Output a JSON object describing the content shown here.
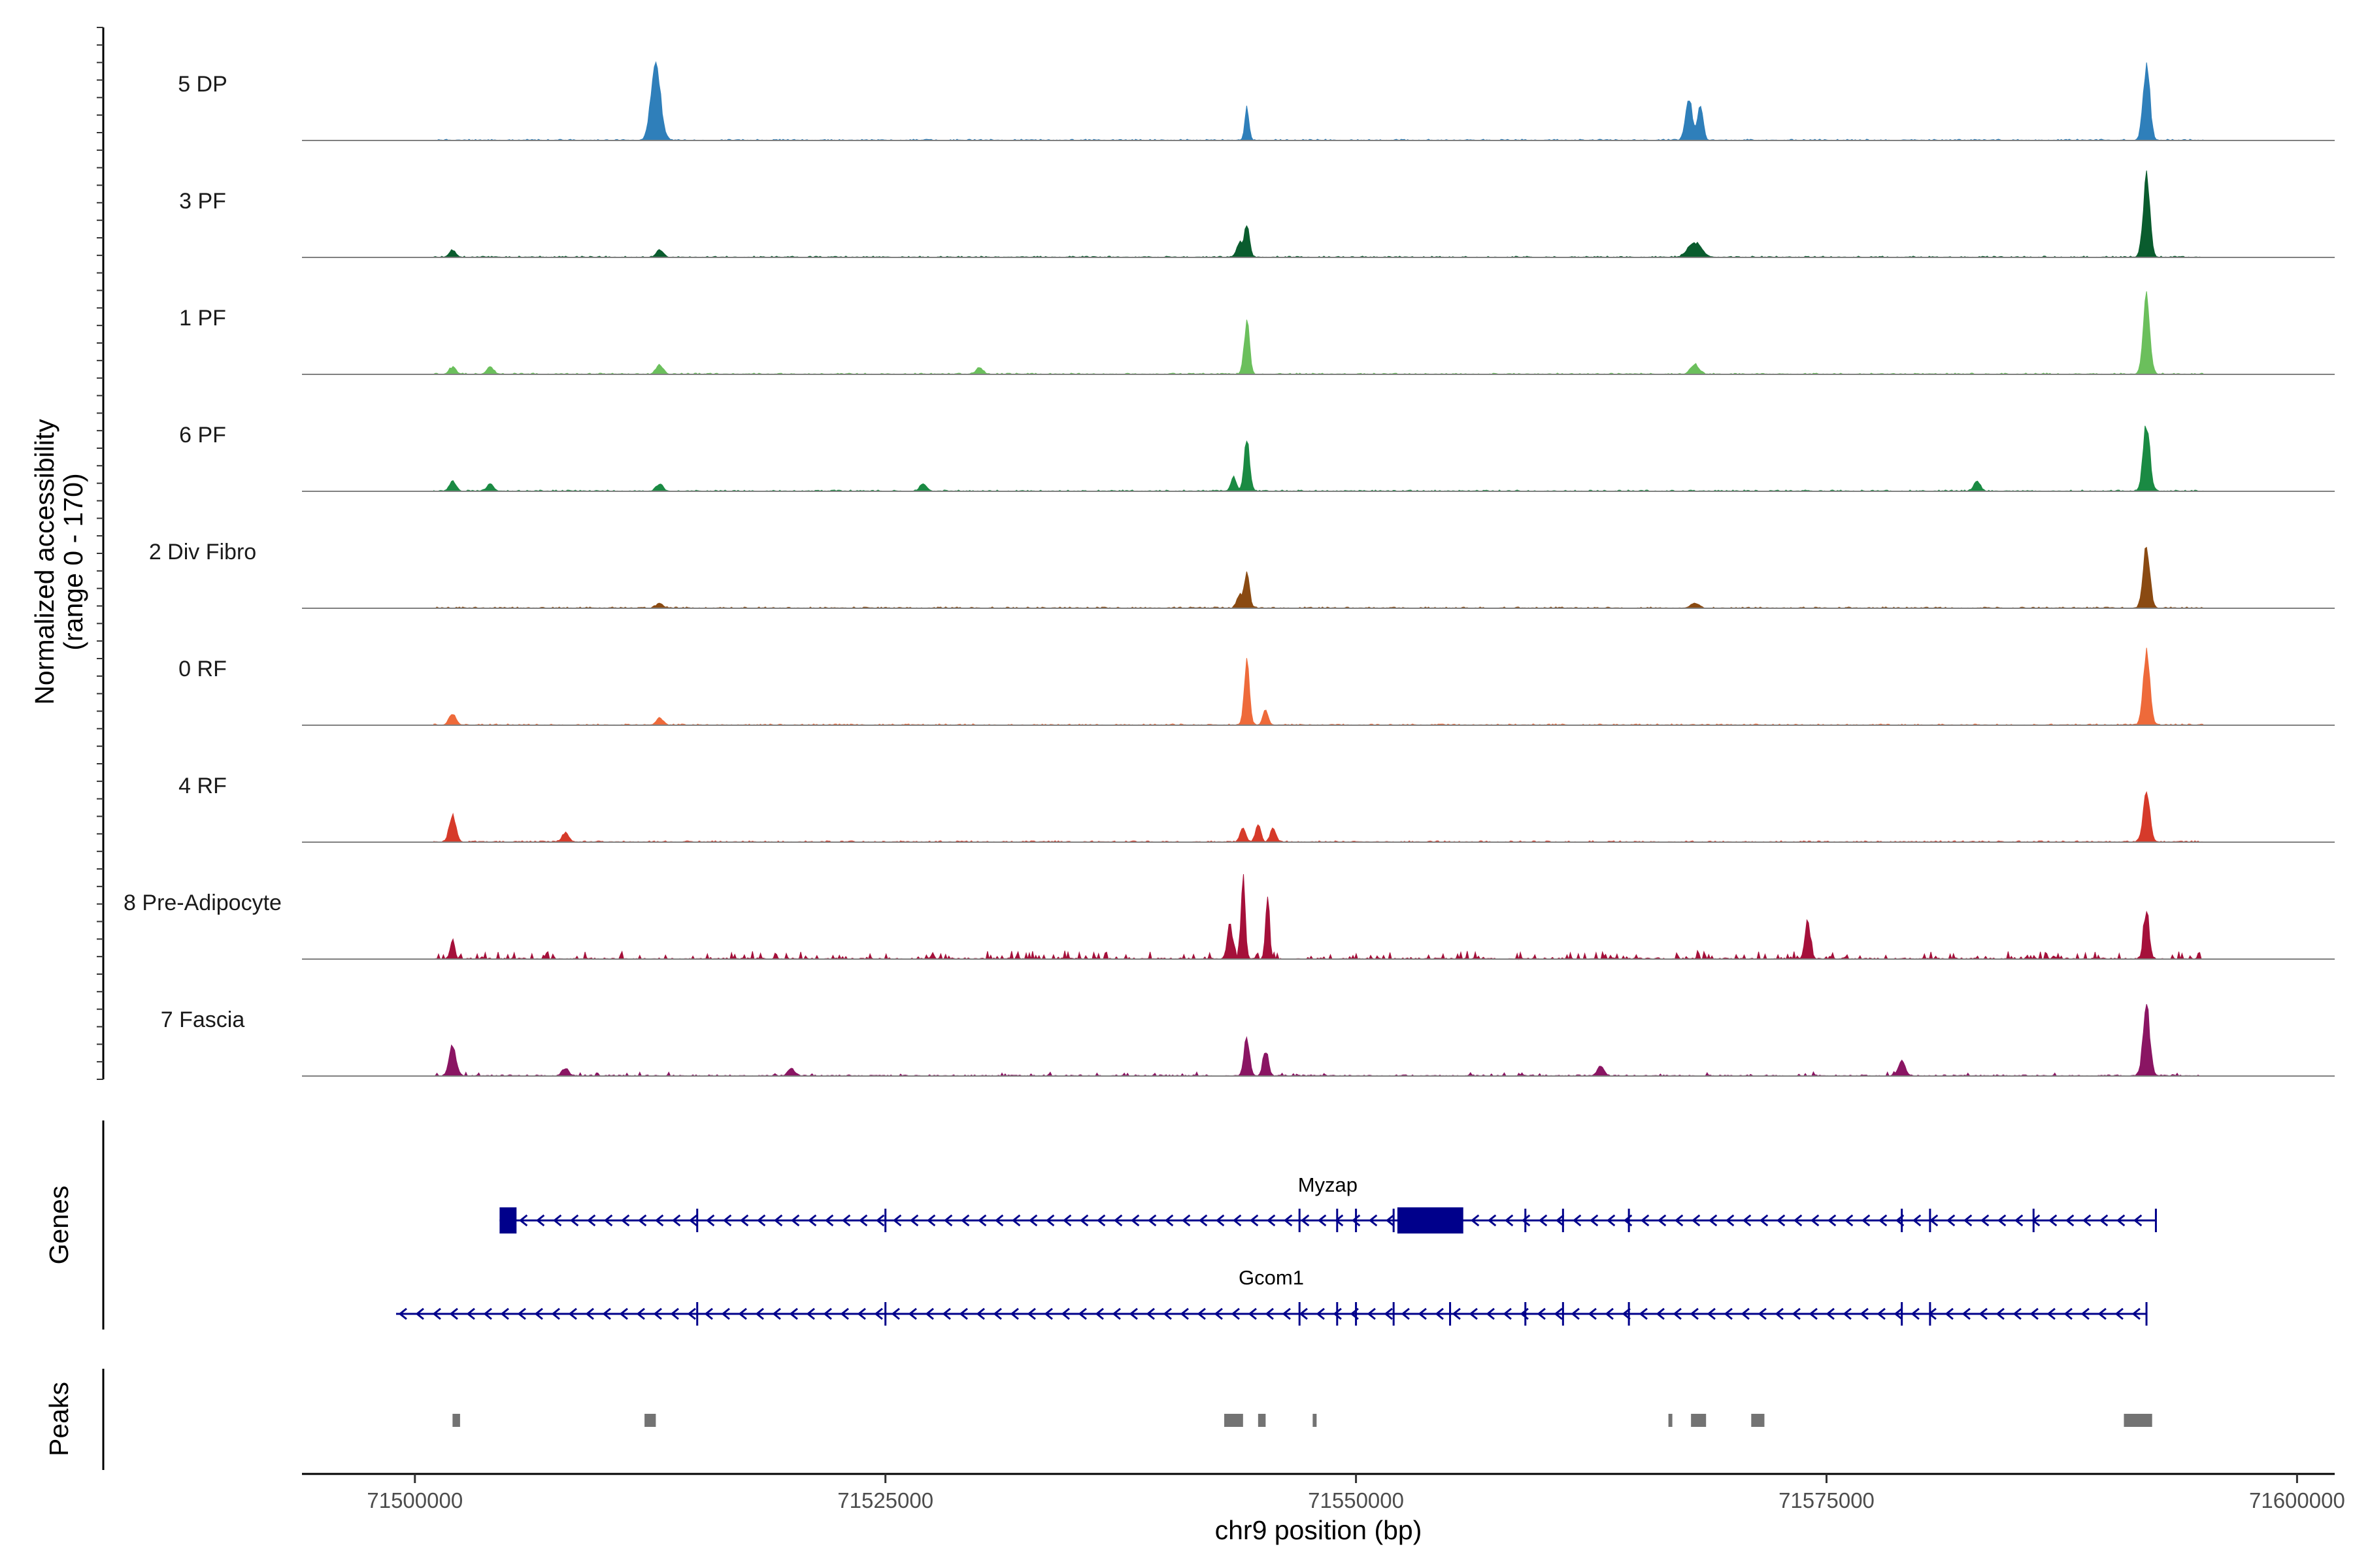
{
  "chart_data": {
    "type": "genome-track",
    "region": {
      "chrom": "chr9",
      "start": 71494000,
      "end": 71602000
    },
    "xlabel": "chr9 position (bp)",
    "x_ticks": [
      71500000,
      71525000,
      71550000,
      71575000,
      71600000
    ],
    "x_tick_labels": [
      "71500000",
      "71525000",
      "71550000",
      "71575000",
      "71600000"
    ],
    "ylabel_line1": "Normalized accessibility",
    "ylabel_line2": "(range 0 - 170)",
    "ylim": [
      0,
      170
    ],
    "genes_label": "Genes",
    "peaks_label": "Peaks",
    "tracks": [
      {
        "name": "5 DP",
        "color": "#2f7fba",
        "peaks": [
          [
            71512800,
            160,
            350
          ],
          [
            71544200,
            70,
            150
          ],
          [
            71567700,
            85,
            250
          ],
          [
            71568300,
            80,
            200
          ],
          [
            71592000,
            160,
            250
          ]
        ]
      },
      {
        "name": "3 PF",
        "color": "#0a5c2e",
        "peaks": [
          [
            71502000,
            15,
            250
          ],
          [
            71513000,
            15,
            250
          ],
          [
            71544200,
            70,
            200
          ],
          [
            71543800,
            30,
            200
          ],
          [
            71568000,
            30,
            500
          ],
          [
            71592000,
            170,
            250
          ]
        ]
      },
      {
        "name": "1 PF",
        "color": "#6bbf5c",
        "peaks": [
          [
            71502000,
            15,
            250
          ],
          [
            71504000,
            15,
            250
          ],
          [
            71513000,
            20,
            250
          ],
          [
            71530000,
            15,
            250
          ],
          [
            71544200,
            110,
            200
          ],
          [
            71568000,
            20,
            300
          ],
          [
            71592000,
            160,
            250
          ]
        ]
      },
      {
        "name": "6 PF",
        "color": "#1a8a43",
        "peaks": [
          [
            71502000,
            20,
            250
          ],
          [
            71504000,
            15,
            250
          ],
          [
            71513000,
            15,
            250
          ],
          [
            71527000,
            15,
            250
          ],
          [
            71544200,
            110,
            200
          ],
          [
            71543500,
            30,
            200
          ],
          [
            71583000,
            20,
            250
          ],
          [
            71592000,
            140,
            250
          ]
        ]
      },
      {
        "name": "2 Div Fibro",
        "color": "#8a4a12",
        "peaks": [
          [
            71513000,
            10,
            250
          ],
          [
            71544200,
            70,
            200
          ],
          [
            71543800,
            25,
            200
          ],
          [
            71568000,
            10,
            300
          ],
          [
            71592000,
            130,
            250
          ]
        ]
      },
      {
        "name": "0 RF",
        "color": "#ee6a3a",
        "peaks": [
          [
            71502000,
            25,
            250
          ],
          [
            71513000,
            15,
            250
          ],
          [
            71544200,
            130,
            200
          ],
          [
            71545200,
            30,
            200
          ],
          [
            71592000,
            150,
            250
          ]
        ]
      },
      {
        "name": "4 RF",
        "color": "#d63a2a",
        "peaks": [
          [
            71502000,
            55,
            250
          ],
          [
            71508000,
            20,
            250
          ],
          [
            71544000,
            30,
            200
          ],
          [
            71544800,
            35,
            200
          ],
          [
            71545600,
            30,
            200
          ],
          [
            71592000,
            105,
            250
          ]
        ]
      },
      {
        "name": "8 Pre-Adipocyte",
        "color": "#a5103a",
        "peaks": [
          [
            71502000,
            40,
            150
          ],
          [
            71544000,
            170,
            150
          ],
          [
            71545300,
            120,
            150
          ],
          [
            71543300,
            70,
            200
          ],
          [
            71574000,
            80,
            200
          ],
          [
            71592000,
            100,
            200
          ]
        ]
      },
      {
        "name": "7 Fascia",
        "color": "#8a1563",
        "peaks": [
          [
            71502000,
            65,
            250
          ],
          [
            71508000,
            15,
            250
          ],
          [
            71520000,
            15,
            250
          ],
          [
            71544200,
            80,
            200
          ],
          [
            71545200,
            55,
            200
          ],
          [
            71563000,
            20,
            250
          ],
          [
            71579000,
            30,
            250
          ],
          [
            71592000,
            150,
            250
          ]
        ]
      }
    ],
    "genes": [
      {
        "name": "Myzap",
        "start": 71504500,
        "end": 71592500,
        "strand": "-",
        "thick_blocks": [
          [
            71504500,
            71505400
          ],
          [
            71552200,
            71555700
          ]
        ],
        "exons": [
          71515000,
          71525000,
          71547000,
          71549000,
          71550000,
          71552000,
          71559000,
          71561000,
          71564500,
          71579000,
          71580500,
          71586000,
          71592500
        ]
      },
      {
        "name": "Gcom1",
        "start": 71499000,
        "end": 71592000,
        "strand": "-",
        "thick_blocks": [],
        "exons": [
          71515000,
          71525000,
          71547000,
          71549000,
          71550000,
          71552000,
          71555000,
          71559000,
          71561000,
          71564500,
          71579000,
          71580500,
          71592000
        ]
      }
    ],
    "peak_regions": [
      [
        71502000,
        71502400
      ],
      [
        71512200,
        71512800
      ],
      [
        71543000,
        71544000
      ],
      [
        71544800,
        71545200
      ],
      [
        71547700,
        71547900
      ],
      [
        71566600,
        71566800
      ],
      [
        71567800,
        71568600
      ],
      [
        71571000,
        71571700
      ],
      [
        71590800,
        71592300
      ]
    ],
    "style": {
      "genes_color": "#00008b",
      "peaks_color": "#737373",
      "baseline_color": "#808080"
    }
  }
}
